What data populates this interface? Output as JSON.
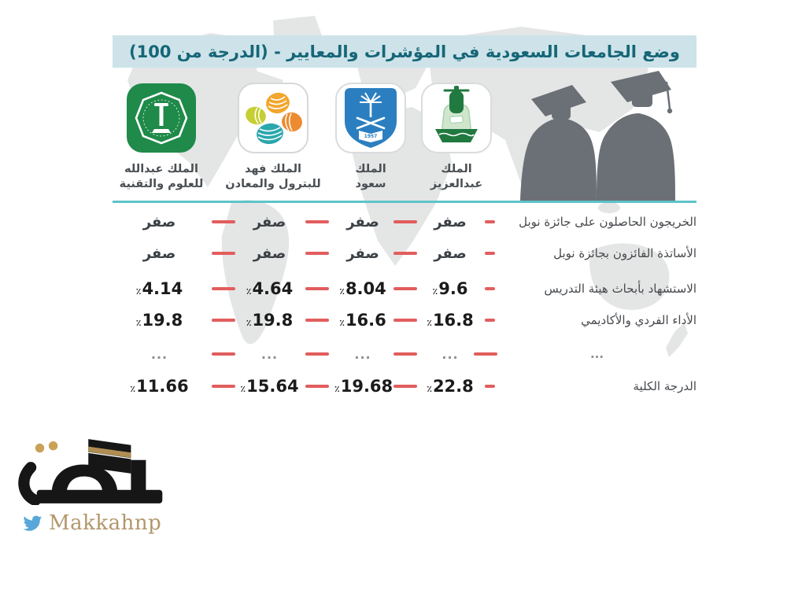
{
  "title": "وضع الجامعات السعودية في المؤشرات والمعايير - (الدرجة من 100)",
  "percent_symbol": "٪",
  "universities": [
    {
      "line1": "الملك",
      "line2": "عبدالعزيز",
      "logo": "kau-emblem"
    },
    {
      "line1": "الملك",
      "line2": "سعود",
      "logo": "ksu-shield-emblem"
    },
    {
      "line1": "الملك فهد",
      "line2": "للبترول والمعادن",
      "logo": "colored-circles-emblem"
    },
    {
      "line1": "الملك عبدالله",
      "line2": "للعلوم والتقنية",
      "logo": "green-octagon-emblem"
    }
  ],
  "rows": [
    {
      "label": "الخريجون الحاصلون على جائزة نوبل",
      "values": [
        "صفر",
        "صفر",
        "صفر",
        "صفر"
      ],
      "percent": false,
      "muted": false
    },
    {
      "label": "الأساتذة الفائزون بجائزة نوبل",
      "values": [
        "صفر",
        "صفر",
        "صفر",
        "صفر"
      ],
      "percent": false,
      "muted": false
    },
    {
      "label": "الاستشهاد بأبحاث هيئة التدريس",
      "values": [
        "9.6",
        "8.04",
        "4.64",
        "4.14"
      ],
      "percent": true,
      "muted": false
    },
    {
      "label": "الأداء الفردي والأكاديمي",
      "values": [
        "16.8",
        "16.6",
        "19.8",
        "19.8"
      ],
      "percent": true,
      "muted": false
    },
    {
      "label": "...",
      "values": [
        "...",
        "...",
        "...",
        "..."
      ],
      "percent": false,
      "muted": true
    },
    {
      "label": "الدرجة الكلية",
      "values": [
        "22.8",
        "19.68",
        "15.64",
        "11.66"
      ],
      "percent": true,
      "muted": false
    }
  ],
  "footer": {
    "twitter_handle": "Makkahnp"
  },
  "colors": {
    "title_bg": "#cde3e9",
    "title_text": "#156677",
    "divider_teal": "#5ec3c8",
    "dash_red": "#e25d5d",
    "value_text": "#1b1b1b",
    "label_text": "#46494d",
    "map_gray": "#e4e5e5",
    "silhouette_gray": "#6b7076",
    "octagon_green": "#1f8a49",
    "ksu_blue": "#2b7fc0",
    "kau_dark_green": "#20793f",
    "kau_light_green": "#cfe6cd",
    "circle_yellow": "#f2a62c",
    "circle_lime": "#c5cf33",
    "circle_orange": "#ec8b30",
    "circle_teal": "#2ba7ae",
    "makkah_black": "#161616",
    "makkah_gold": "#b2976b",
    "twitter_blue": "#58a7d8"
  },
  "chart_data": {
    "type": "table",
    "title": "وضع الجامعات السعودية في المؤشرات والمعايير - (الدرجة من 100)",
    "columns": [
      "الملك عبدالعزيز",
      "الملك سعود",
      "الملك فهد للبترول والمعادن",
      "الملك عبدالله للعلوم والتقنية"
    ],
    "rows": [
      {
        "metric": "الخريجون الحاصلون على جائزة نوبل",
        "values": [
          "صفر",
          "صفر",
          "صفر",
          "صفر"
        ]
      },
      {
        "metric": "الأساتذة الفائزون بجائزة نوبل",
        "values": [
          "صفر",
          "صفر",
          "صفر",
          "صفر"
        ]
      },
      {
        "metric": "الاستشهاد بأبحاث هيئة التدريس",
        "values": [
          9.6,
          8.04,
          4.64,
          4.14
        ],
        "unit": "%"
      },
      {
        "metric": "الأداء الفردي والأكاديمي",
        "values": [
          16.8,
          16.6,
          19.8,
          19.8
        ],
        "unit": "%"
      },
      {
        "metric": "...",
        "values": [
          "...",
          "...",
          "...",
          "..."
        ]
      },
      {
        "metric": "الدرجة الكلية",
        "values": [
          22.8,
          19.68,
          15.64,
          11.66
        ],
        "unit": "%"
      }
    ],
    "scale_max": 100
  }
}
